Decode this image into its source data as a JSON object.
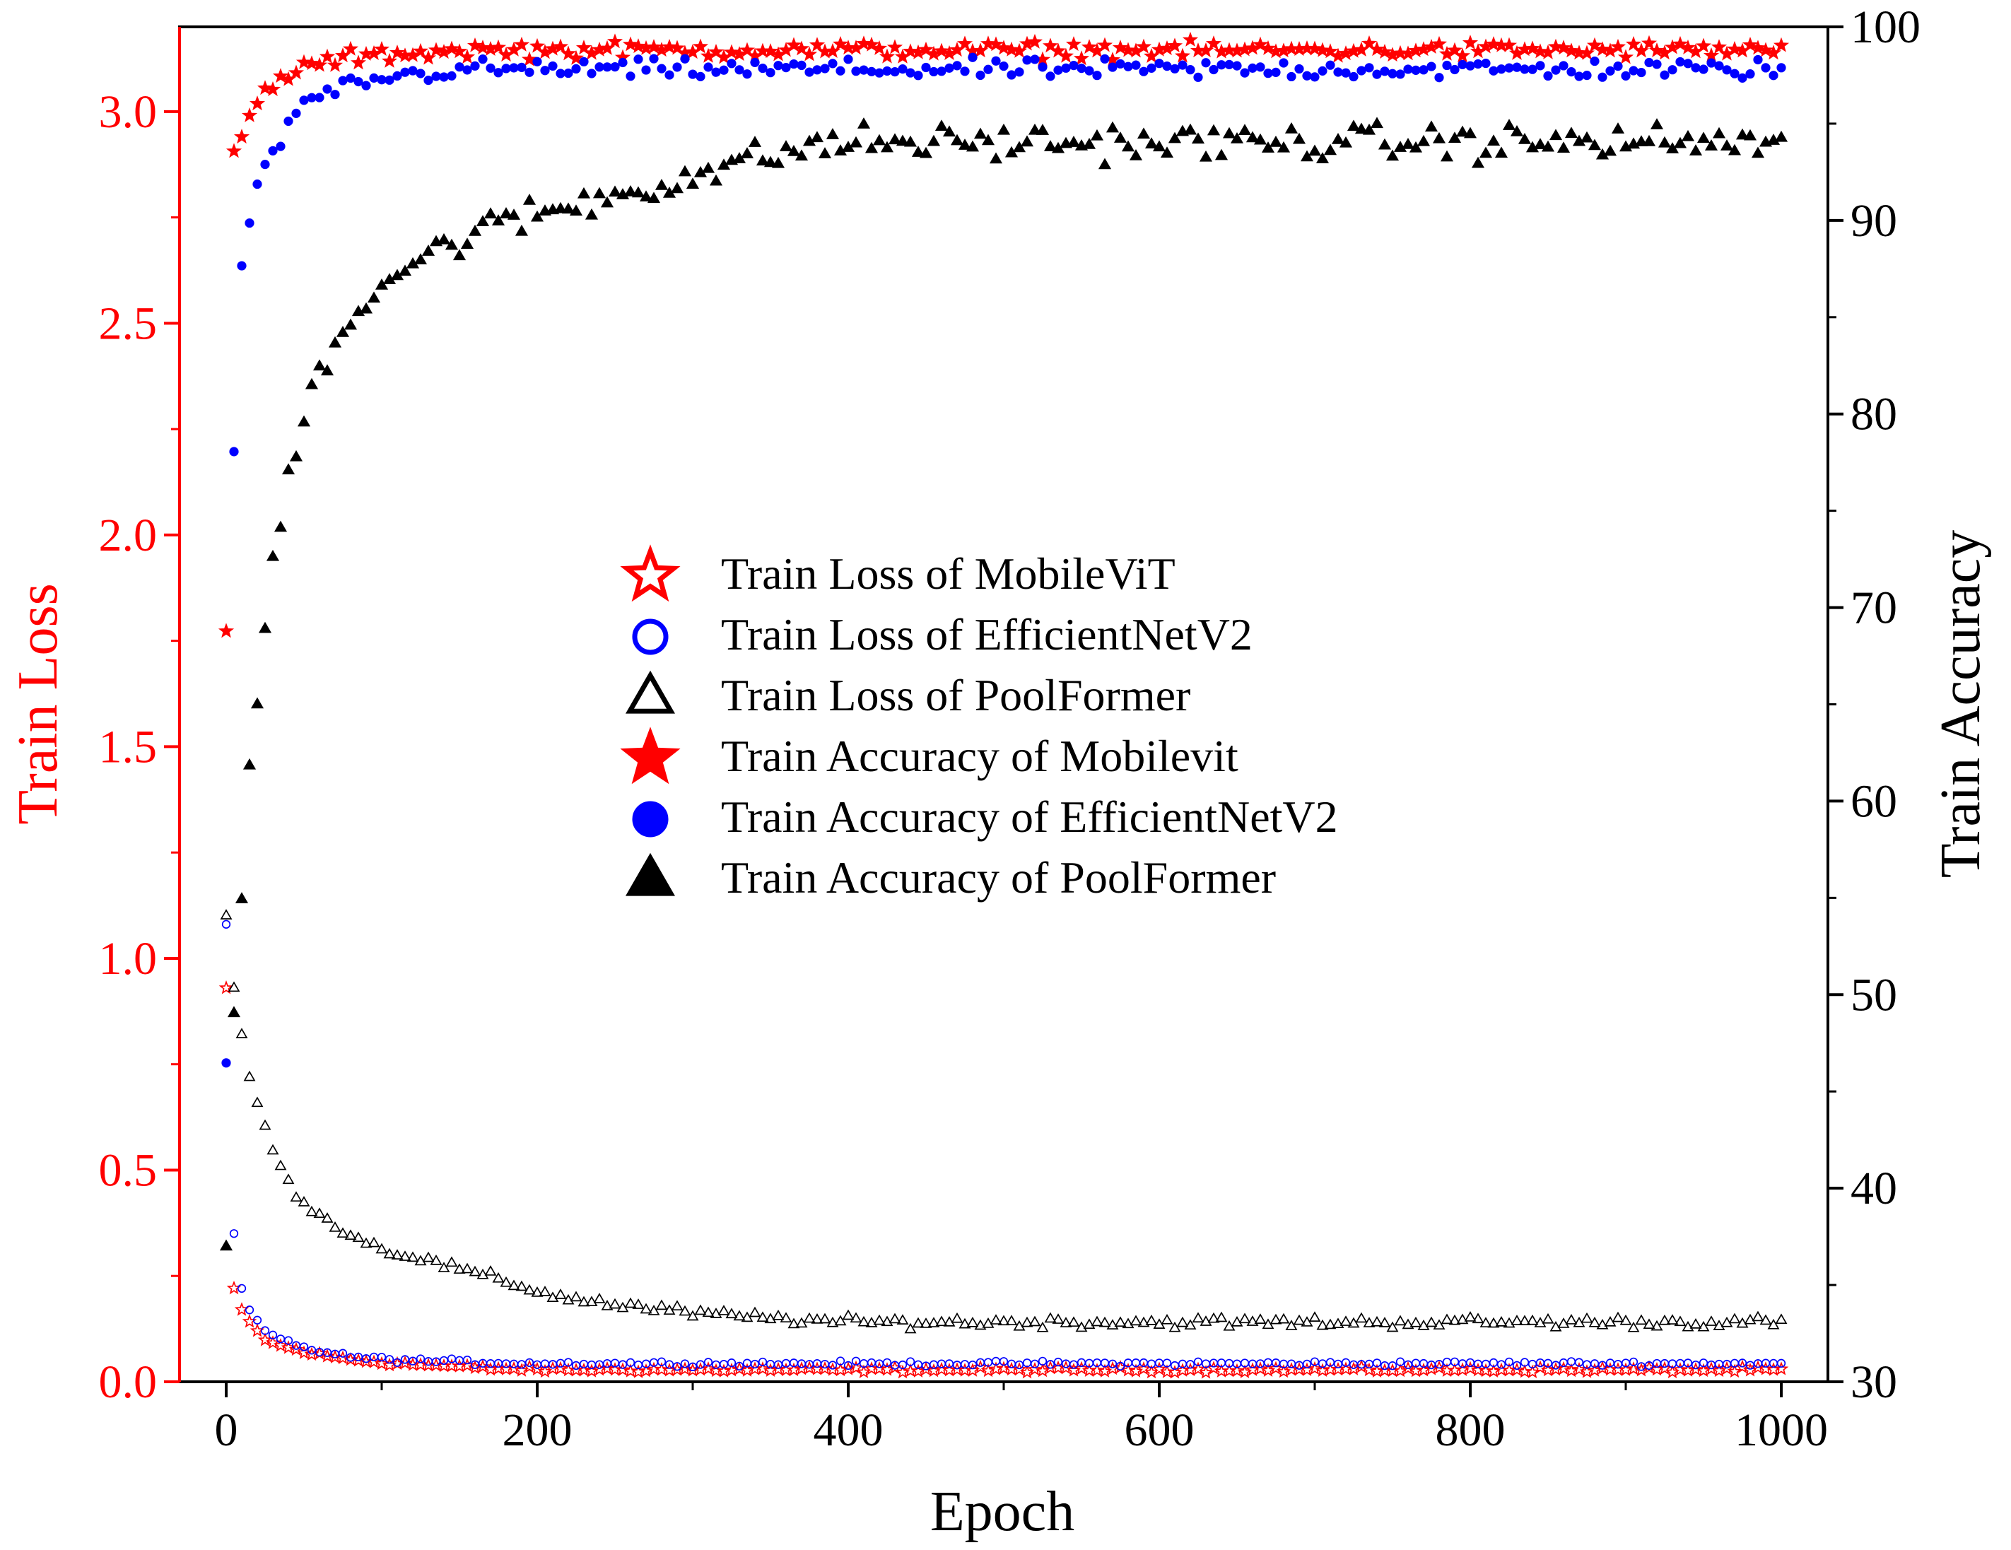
{
  "colors": {
    "mobilevit": "#ff0000",
    "efficientnetv2": "#0000ff",
    "poolformer": "#000000",
    "left_axis": "#ff0000",
    "right_axis": "#000000"
  },
  "chart_data": {
    "type": "scatter",
    "title": "",
    "xlabel": "Epoch",
    "ylabel_left": "Train Loss",
    "ylabel_right": "Train Accuracy",
    "xlim": [
      -30,
      1030
    ],
    "ylim_left": [
      0.0,
      3.2
    ],
    "ylim_right": [
      30,
      100
    ],
    "x_ticks": [
      0,
      200,
      400,
      600,
      800,
      1000
    ],
    "x_tick_labels": [
      "0",
      "200",
      "400",
      "600",
      "800",
      "1000"
    ],
    "y_left_ticks": [
      0.0,
      0.5,
      1.0,
      1.5,
      2.0,
      2.5,
      3.0
    ],
    "y_left_tick_labels": [
      "0.0",
      "0.5",
      "1.0",
      "1.5",
      "2.0",
      "2.5",
      "3.0"
    ],
    "y_right_ticks": [
      30,
      40,
      50,
      60,
      70,
      80,
      90,
      100
    ],
    "y_right_tick_labels": [
      "30",
      "40",
      "50",
      "60",
      "70",
      "80",
      "90",
      "100"
    ],
    "grid": false,
    "legend_position": "center",
    "sampling_note": "Every series is sampled every 5 epochs (x = 0, 5, 10, ..., 1000); the last anchor value fills all remaining epochs.",
    "series": [
      {
        "name": "Train Loss of MobileViT",
        "axis": "left",
        "marker": "star",
        "filled": false,
        "color": "#ff0000",
        "x_start": 0,
        "x_step": 5,
        "values": [
          0.93,
          0.22,
          0.17,
          0.14,
          0.12,
          0.1,
          0.09,
          0.085,
          0.08,
          0.075,
          0.07,
          0.066,
          0.063,
          0.06,
          0.057,
          0.055,
          0.053,
          0.051,
          0.049,
          0.047,
          0.045,
          0.044,
          0.043,
          0.042,
          0.041,
          0.04,
          0.039,
          0.038,
          0.037,
          0.036,
          0.035,
          0.034,
          0.033,
          0.032,
          0.031,
          0.031,
          0.03,
          0.03,
          0.029,
          0.029,
          0.028
        ]
      },
      {
        "name": "Train Loss of EfficientNetV2",
        "axis": "left",
        "marker": "circle",
        "filled": false,
        "color": "#0000ff",
        "x_start": 0,
        "x_step": 5,
        "values": [
          1.08,
          0.35,
          0.22,
          0.17,
          0.14,
          0.12,
          0.11,
          0.1,
          0.095,
          0.088,
          0.082,
          0.077,
          0.072,
          0.068,
          0.065,
          0.062,
          0.06,
          0.058,
          0.056,
          0.055,
          0.054,
          0.053,
          0.052,
          0.051,
          0.05,
          0.05,
          0.049,
          0.049,
          0.048,
          0.048,
          0.047,
          0.047,
          0.046,
          0.046,
          0.045,
          0.045,
          0.045,
          0.044,
          0.044,
          0.044,
          0.043
        ]
      },
      {
        "name": "Train Loss of PoolFormer",
        "axis": "left",
        "marker": "triangle",
        "filled": false,
        "color": "#000000",
        "x_start": 0,
        "x_step": 5,
        "values": [
          1.1,
          0.93,
          0.82,
          0.72,
          0.66,
          0.6,
          0.55,
          0.5,
          0.47,
          0.45,
          0.43,
          0.41,
          0.395,
          0.38,
          0.37,
          0.36,
          0.35,
          0.34,
          0.33,
          0.32,
          0.315,
          0.31,
          0.305,
          0.3,
          0.295,
          0.29,
          0.285,
          0.28,
          0.275,
          0.27,
          0.265,
          0.26,
          0.255,
          0.25,
          0.245,
          0.24,
          0.235,
          0.23,
          0.225,
          0.22,
          0.215,
          0.21,
          0.205,
          0.2,
          0.198,
          0.195,
          0.193,
          0.19,
          0.188,
          0.185,
          0.183,
          0.18,
          0.178,
          0.176,
          0.174,
          0.172,
          0.17,
          0.168,
          0.166,
          0.164,
          0.162,
          0.16,
          0.158,
          0.157,
          0.156,
          0.155,
          0.154,
          0.153,
          0.152,
          0.151,
          0.15,
          0.149,
          0.148,
          0.147,
          0.146,
          0.145,
          0.144,
          0.143,
          0.142,
          0.141,
          0.14
        ]
      },
      {
        "name": "Train Accuracy of Mobilevit",
        "axis": "right",
        "marker": "star",
        "filled": true,
        "color": "#ff0000",
        "x_start": 0,
        "x_step": 5,
        "values": [
          68.8,
          93.5,
          94.3,
          95.3,
          96.0,
          96.6,
          97.0,
          97.3,
          97.5,
          97.7,
          97.9,
          98.0,
          98.1,
          98.2,
          98.3,
          98.3,
          98.4,
          98.4,
          98.5,
          98.5,
          98.5,
          98.6,
          98.6,
          98.6,
          98.7,
          98.7,
          98.7,
          98.7,
          98.8,
          98.8,
          98.8
        ]
      },
      {
        "name": "Train Accuracy of EfficientNetV2",
        "axis": "right",
        "marker": "circle",
        "filled": true,
        "color": "#0000ff",
        "x_start": 0,
        "x_step": 5,
        "values": [
          46.5,
          78.0,
          87.7,
          89.5,
          91.4,
          92.9,
          93.6,
          94.2,
          94.8,
          95.3,
          95.7,
          96.0,
          96.3,
          96.5,
          96.7,
          96.9,
          97.0,
          97.1,
          97.2,
          97.3,
          97.3,
          97.4,
          97.4,
          97.5,
          97.5,
          97.6,
          97.6,
          97.7,
          97.7,
          97.7,
          97.8
        ]
      },
      {
        "name": "Train Accuracy of PoolFormer",
        "axis": "right",
        "marker": "triangle",
        "filled": true,
        "color": "#000000",
        "x_start": 0,
        "x_step": 5,
        "values": [
          37.0,
          49.0,
          55.0,
          61.0,
          65.0,
          69.0,
          72.5,
          74.5,
          76.5,
          78.5,
          80.0,
          81.2,
          82.3,
          83.1,
          83.8,
          84.4,
          85.0,
          85.5,
          85.9,
          86.3,
          86.7,
          87.0,
          87.3,
          87.5,
          87.8,
          88.0,
          88.2,
          88.4,
          88.6,
          88.8,
          89.0,
          89.2,
          89.3,
          89.5,
          89.6,
          89.8,
          89.9,
          90.0,
          90.1,
          90.2,
          90.3,
          90.4,
          90.5,
          90.6,
          90.7,
          90.8,
          90.9,
          91.0,
          91.1,
          91.2,
          91.3,
          91.4,
          91.5,
          91.6,
          91.7,
          91.8,
          91.9,
          92.0,
          92.1,
          92.2,
          92.3,
          92.4,
          92.5,
          92.6,
          92.7,
          92.8,
          92.9,
          93.0,
          93.1,
          93.2,
          93.3,
          93.4,
          93.5,
          93.6,
          93.7,
          93.8,
          93.8,
          93.9,
          93.9,
          94.0,
          94.0
        ]
      }
    ]
  }
}
